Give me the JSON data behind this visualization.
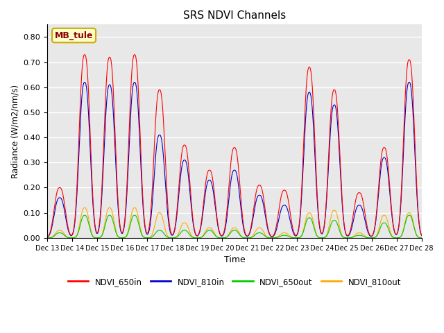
{
  "title": "SRS NDVI Channels",
  "xlabel": "Time",
  "ylabel": "Radiance (W/m2/nm/s)",
  "annotation": "MB_tule",
  "ylim": [
    0.0,
    0.85
  ],
  "yticks": [
    0.0,
    0.1,
    0.2,
    0.3,
    0.4,
    0.5,
    0.6,
    0.7,
    0.8
  ],
  "colors": {
    "NDVI_650in": "#ff0000",
    "NDVI_810in": "#0000cc",
    "NDVI_650out": "#00cc00",
    "NDVI_810out": "#ffaa00"
  },
  "bg_color": "#e8e8e8",
  "xmin": 13.0,
  "xmax": 28.0,
  "peak_days": [
    13.5,
    14.5,
    15.5,
    16.5,
    17.5,
    18.5,
    19.5,
    20.5,
    21.5,
    22.5,
    23.5,
    24.5,
    25.5,
    26.5,
    27.5
  ],
  "peak_650in": [
    0.2,
    0.73,
    0.72,
    0.73,
    0.59,
    0.37,
    0.27,
    0.36,
    0.21,
    0.19,
    0.68,
    0.59,
    0.18,
    0.36,
    0.71
  ],
  "peak_810in": [
    0.16,
    0.62,
    0.61,
    0.62,
    0.41,
    0.31,
    0.23,
    0.27,
    0.17,
    0.13,
    0.58,
    0.53,
    0.13,
    0.32,
    0.62
  ],
  "peak_650out": [
    0.02,
    0.09,
    0.09,
    0.09,
    0.03,
    0.03,
    0.03,
    0.03,
    0.02,
    0.01,
    0.08,
    0.07,
    0.01,
    0.06,
    0.09
  ],
  "peak_810out": [
    0.03,
    0.12,
    0.12,
    0.12,
    0.1,
    0.06,
    0.04,
    0.04,
    0.04,
    0.02,
    0.1,
    0.11,
    0.02,
    0.09,
    0.1
  ]
}
